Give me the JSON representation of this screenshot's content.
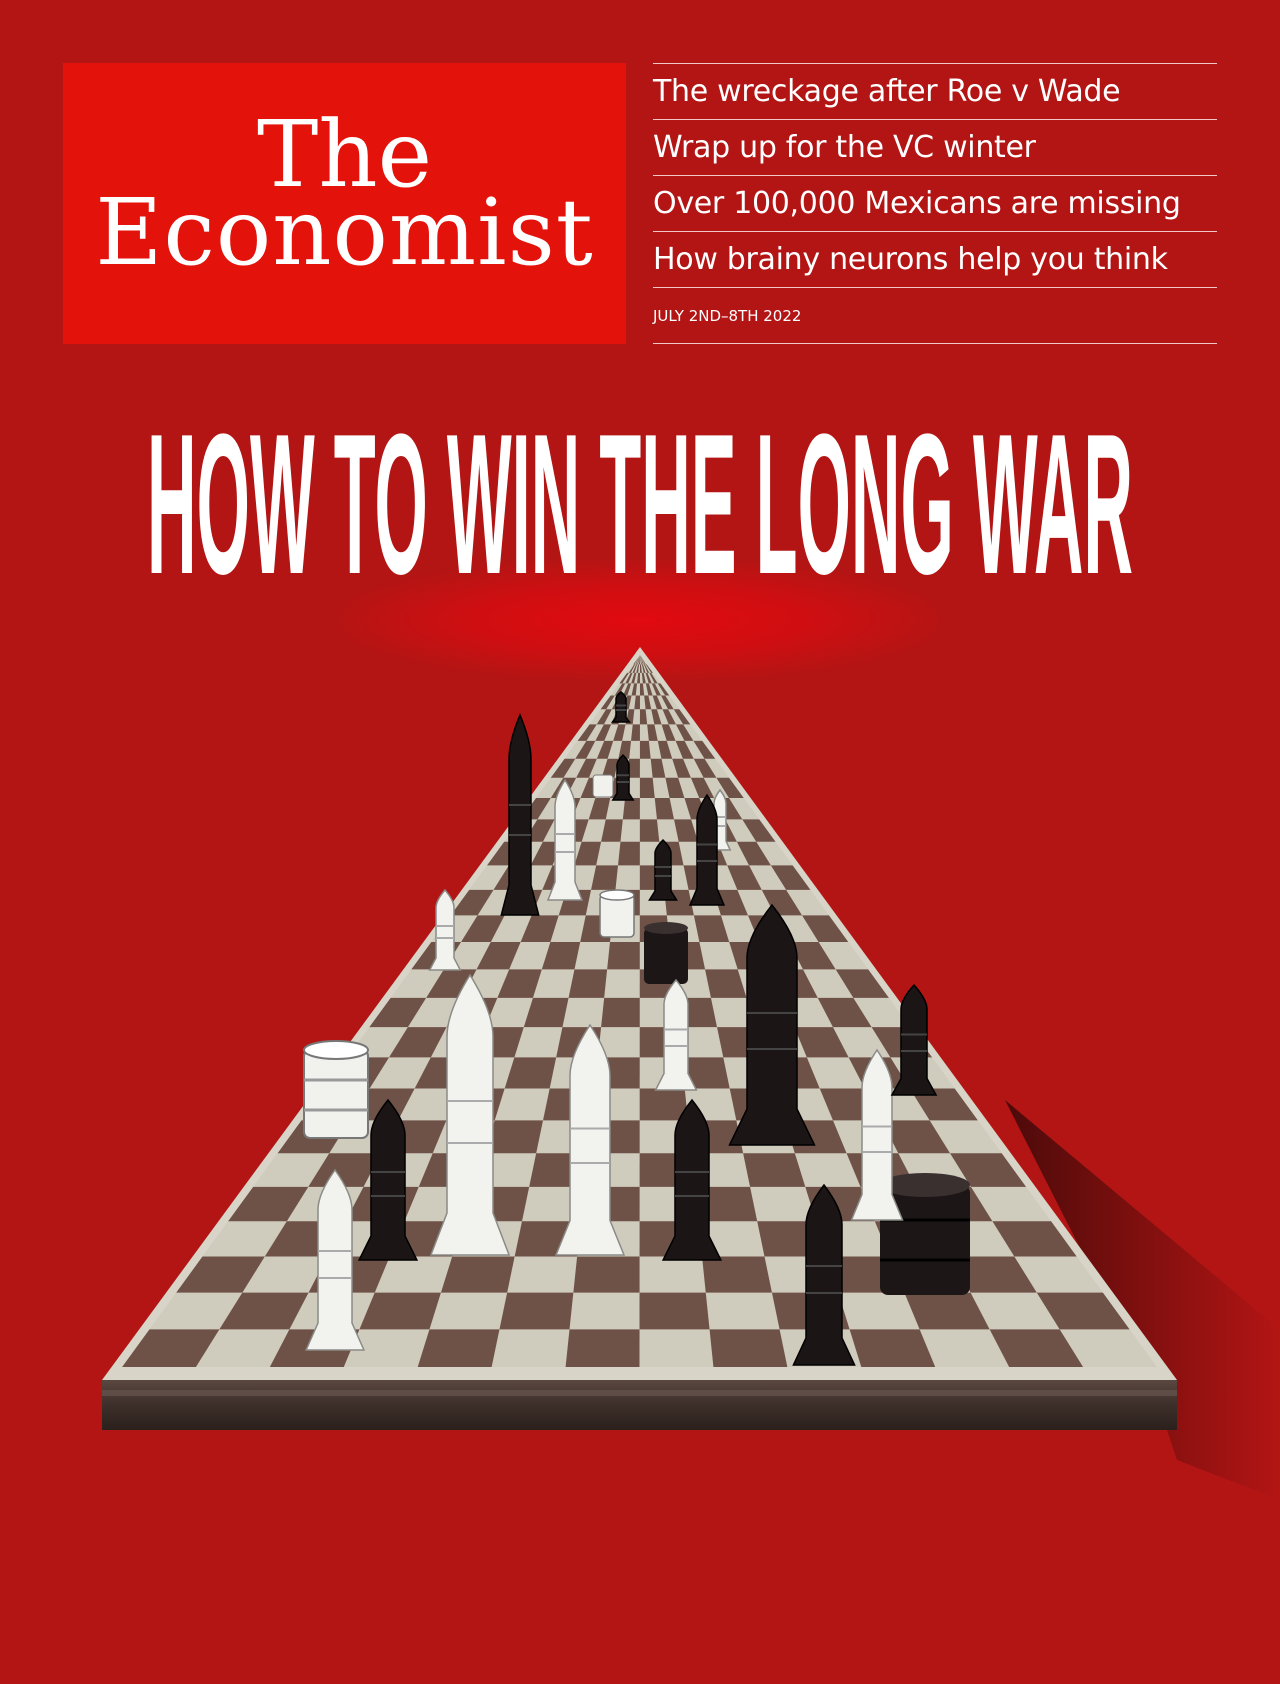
{
  "masthead": {
    "line1": "The",
    "line2": "Economist"
  },
  "headlines": [
    "The wreckage after Roe v Wade",
    "Wrap up for the VC winter",
    "Over 100,000 Mexicans are missing",
    "How brainy neurons help you think"
  ],
  "dateline": "JULY 2ND–8TH 2022",
  "cover": {
    "title": "HOW TO WIN THE LONG WAR"
  },
  "colors": {
    "background": "#b31514",
    "masthead": "#e3120b",
    "text": "#ffffff"
  },
  "illustration": {
    "subject": "chessboard-with-missiles-and-oil-barrels"
  }
}
